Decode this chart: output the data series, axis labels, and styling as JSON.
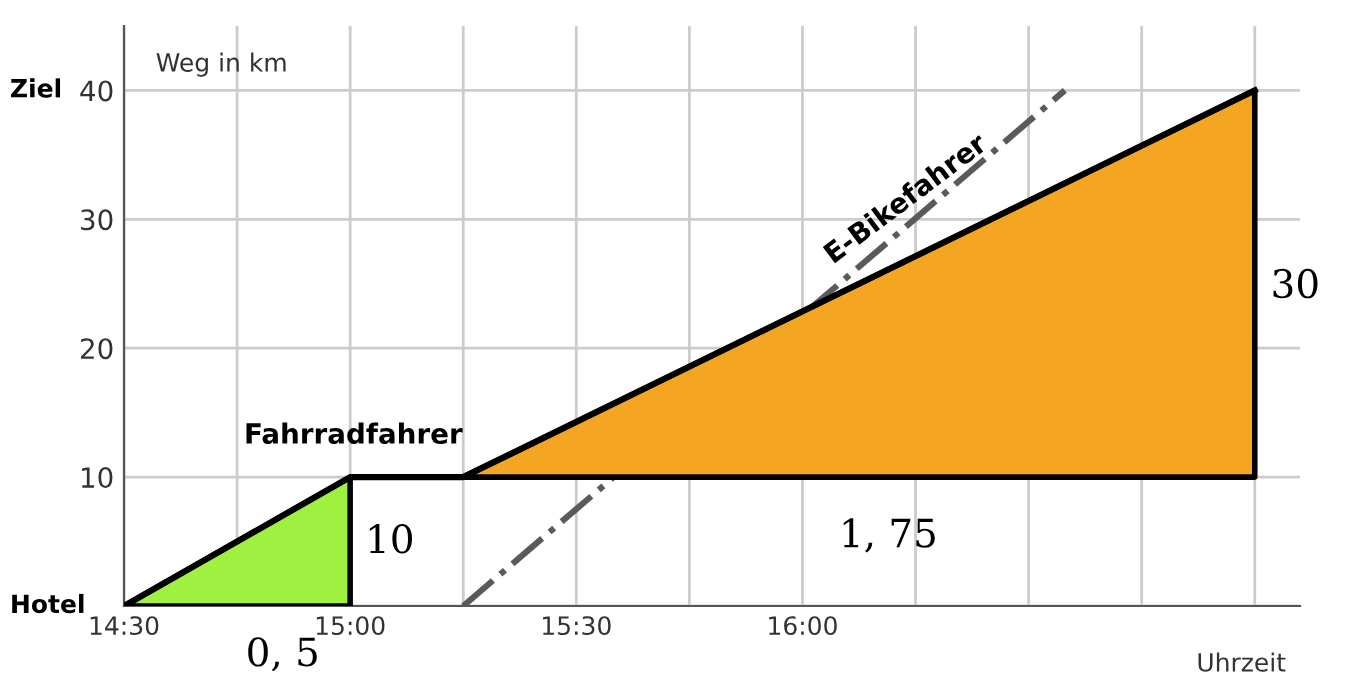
{
  "chart_data": {
    "type": "line",
    "xlabel": "Uhrzeit",
    "ylabel": "Weg in km",
    "xlim": [
      14.5,
      17.1
    ],
    "ylim": [
      0,
      45
    ],
    "xticks": [
      {
        "value": 14.5,
        "label": "14:30"
      },
      {
        "value": 14.75,
        "label": null
      },
      {
        "value": 15,
        "label": "15:00"
      },
      {
        "value": 15.25,
        "label": null
      },
      {
        "value": 15.5,
        "label": "15:30"
      },
      {
        "value": 15.75,
        "label": null
      },
      {
        "value": 16,
        "label": "16:00"
      },
      {
        "value": 16.25,
        "label": null
      },
      {
        "value": 16.5,
        "label": null
      },
      {
        "value": 16.75,
        "label": null
      },
      {
        "value": 17,
        "label": null
      }
    ],
    "yticks": [
      {
        "value": 0,
        "label": null
      },
      10,
      20,
      30,
      40
    ],
    "grid": true,
    "marker": "none",
    "series": [
      {
        "color": "#5a5a5a",
        "line_style": "dashdot",
        "x": [
          15.25,
          16.58
        ],
        "values": [
          0,
          40
        ]
      },
      {
        "color": "#000000",
        "line_style": "solid",
        "x": [
          14.5,
          15,
          15.25,
          17
        ],
        "values": [
          0,
          10,
          10,
          40
        ]
      }
    ],
    "annotations": [
      "Fahrradfahrer",
      "E-Bikefahrer",
      "Ziel",
      "Hotel",
      "0, 5",
      "10",
      "1, 75",
      "30"
    ]
  }
}
